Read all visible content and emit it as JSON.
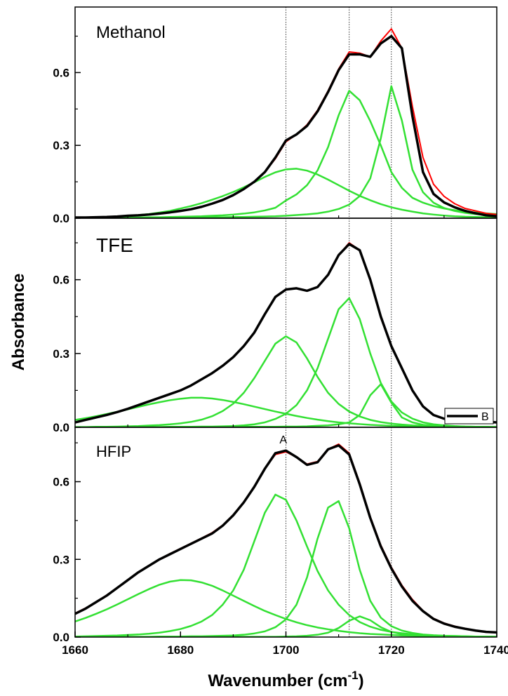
{
  "chart_data": [
    {
      "type": "line",
      "title": "Methanol",
      "x": [
        1660,
        1662,
        1664,
        1666,
        1668,
        1670,
        1672,
        1674,
        1676,
        1678,
        1680,
        1682,
        1684,
        1686,
        1688,
        1690,
        1692,
        1694,
        1696,
        1698,
        1700,
        1702,
        1704,
        1706,
        1708,
        1710,
        1712,
        1714,
        1716,
        1718,
        1720,
        1722,
        1724,
        1726,
        1728,
        1730,
        1732,
        1734,
        1736,
        1738,
        1740
      ],
      "series": [
        {
          "color": "#33e033",
          "values": [
            0.002,
            0.003,
            0.004,
            0.005,
            0.007,
            0.01,
            0.013,
            0.017,
            0.023,
            0.03,
            0.04,
            0.05,
            0.062,
            0.076,
            0.091,
            0.108,
            0.127,
            0.148,
            0.17,
            0.189,
            0.201,
            0.204,
            0.196,
            0.18,
            0.159,
            0.136,
            0.113,
            0.092,
            0.074,
            0.058,
            0.045,
            0.035,
            0.027,
            0.02,
            0.015,
            0.011,
            0.008,
            0.006,
            0.005,
            0.004,
            0.003
          ]
        },
        {
          "color": "#33e033",
          "values": [
            0.001,
            0.001,
            0.002,
            0.002,
            0.002,
            0.003,
            0.003,
            0.004,
            0.004,
            0.005,
            0.006,
            0.007,
            0.008,
            0.01,
            0.012,
            0.015,
            0.019,
            0.024,
            0.032,
            0.043,
            0.073,
            0.098,
            0.136,
            0.197,
            0.293,
            0.424,
            0.525,
            0.486,
            0.4,
            0.3,
            0.19,
            0.125,
            0.084,
            0.064,
            0.05,
            0.04,
            0.033,
            0.027,
            0.023,
            0.02,
            0.017
          ]
        },
        {
          "color": "#33e033",
          "values": [
            0.001,
            0.001,
            0.001,
            0.001,
            0.002,
            0.002,
            0.002,
            0.002,
            0.002,
            0.002,
            0.003,
            0.003,
            0.003,
            0.004,
            0.004,
            0.005,
            0.005,
            0.006,
            0.007,
            0.008,
            0.01,
            0.013,
            0.016,
            0.02,
            0.027,
            0.038,
            0.056,
            0.091,
            0.164,
            0.329,
            0.544,
            0.402,
            0.2,
            0.107,
            0.064,
            0.042,
            0.03,
            0.022,
            0.017,
            0.013,
            0.011
          ]
        },
        {
          "color": "#ff0000",
          "values": [
            0.003,
            0.004,
            0.005,
            0.006,
            0.008,
            0.01,
            0.012,
            0.015,
            0.019,
            0.024,
            0.03,
            0.037,
            0.047,
            0.06,
            0.075,
            0.095,
            0.12,
            0.15,
            0.19,
            0.245,
            0.315,
            0.345,
            0.385,
            0.445,
            0.525,
            0.615,
            0.685,
            0.68,
            0.665,
            0.73,
            0.78,
            0.7,
            0.46,
            0.25,
            0.14,
            0.09,
            0.06,
            0.04,
            0.03,
            0.02,
            0.015
          ]
        },
        {
          "color": "#000000",
          "values": [
            0.003,
            0.003,
            0.004,
            0.005,
            0.007,
            0.01,
            0.012,
            0.015,
            0.019,
            0.024,
            0.03,
            0.037,
            0.047,
            0.06,
            0.075,
            0.095,
            0.12,
            0.15,
            0.19,
            0.25,
            0.32,
            0.345,
            0.38,
            0.44,
            0.52,
            0.61,
            0.675,
            0.675,
            0.665,
            0.72,
            0.75,
            0.7,
            0.42,
            0.19,
            0.1,
            0.065,
            0.045,
            0.03,
            0.02,
            0.012,
            0.008
          ]
        }
      ],
      "xlim": [
        1660,
        1740
      ],
      "xminorticks": [
        1670,
        1690,
        1710,
        1730
      ],
      "ylim": [
        0,
        0.87
      ],
      "yticks": [
        {
          "value": 0,
          "label": "0.0"
        },
        0.3,
        0.6
      ],
      "yminorticks": [
        0.15,
        0.45,
        0.75
      ],
      "vlines": [
        1700,
        1712,
        1720
      ]
    },
    {
      "type": "line",
      "title": "TFE",
      "ylabel": "Absorbance",
      "legend": "lower right",
      "x": [
        1660,
        1662,
        1664,
        1666,
        1668,
        1670,
        1672,
        1674,
        1676,
        1678,
        1680,
        1682,
        1684,
        1686,
        1688,
        1690,
        1692,
        1694,
        1696,
        1698,
        1700,
        1702,
        1704,
        1706,
        1708,
        1710,
        1712,
        1714,
        1716,
        1718,
        1720,
        1722,
        1724,
        1726,
        1728,
        1730,
        1732,
        1734,
        1736,
        1738,
        1740
      ],
      "series": [
        {
          "color": "#33e033",
          "values": [
            0.03,
            0.037,
            0.045,
            0.054,
            0.063,
            0.073,
            0.083,
            0.093,
            0.102,
            0.11,
            0.116,
            0.12,
            0.12,
            0.117,
            0.111,
            0.103,
            0.094,
            0.084,
            0.074,
            0.064,
            0.055,
            0.046,
            0.038,
            0.031,
            0.025,
            0.02,
            0.016,
            0.013,
            0.01,
            0.008,
            0.006,
            0.005,
            0.004,
            0.003,
            0.002,
            0.002,
            0.001,
            0.001,
            0.001,
            0.001,
            0
          ]
        },
        {
          "color": "#33e033",
          "values": [
            0.001,
            0.001,
            0.002,
            0.002,
            0.003,
            0.004,
            0.005,
            0.007,
            0.009,
            0.012,
            0.016,
            0.022,
            0.031,
            0.045,
            0.066,
            0.096,
            0.14,
            0.2,
            0.27,
            0.34,
            0.37,
            0.345,
            0.28,
            0.205,
            0.14,
            0.095,
            0.064,
            0.044,
            0.03,
            0.021,
            0.015,
            0.011,
            0.008,
            0.006,
            0.004,
            0.003,
            0.002,
            0.002,
            0.001,
            0.001,
            0.001
          ]
        },
        {
          "color": "#33e033",
          "values": [
            0,
            0,
            0,
            0,
            0.001,
            0.001,
            0.001,
            0.001,
            0.001,
            0.002,
            0.002,
            0.002,
            0.003,
            0.003,
            0.004,
            0.005,
            0.008,
            0.012,
            0.02,
            0.034,
            0.055,
            0.09,
            0.15,
            0.24,
            0.36,
            0.48,
            0.525,
            0.44,
            0.3,
            0.18,
            0.105,
            0.06,
            0.035,
            0.02,
            0.012,
            0.008,
            0.005,
            0.003,
            0.002,
            0.001,
            0.001
          ]
        },
        {
          "color": "#33e033",
          "values": [
            0,
            0,
            0,
            0,
            0,
            0,
            0.001,
            0.001,
            0.001,
            0.001,
            0.001,
            0.001,
            0.001,
            0.001,
            0.001,
            0.001,
            0.002,
            0.002,
            0.002,
            0.002,
            0.003,
            0.003,
            0.004,
            0.006,
            0.008,
            0.012,
            0.02,
            0.05,
            0.13,
            0.175,
            0.1,
            0.04,
            0.02,
            0.01,
            0.007,
            0.005,
            0.004,
            0.003,
            0.002,
            0.002,
            0.001
          ]
        },
        {
          "color": "#ff0000",
          "values": [
            0.02,
            0.03,
            0.04,
            0.05,
            0.062,
            0.075,
            0.09,
            0.105,
            0.12,
            0.135,
            0.15,
            0.17,
            0.195,
            0.22,
            0.25,
            0.285,
            0.33,
            0.385,
            0.46,
            0.53,
            0.56,
            0.565,
            0.555,
            0.57,
            0.62,
            0.7,
            0.75,
            0.72,
            0.605,
            0.445,
            0.33,
            0.24,
            0.15,
            0.085,
            0.05,
            0.035,
            0.03,
            0.027,
            0.025,
            0.022,
            0.02
          ]
        },
        {
          "name": "B",
          "color": "#000000",
          "values": [
            0.02,
            0.03,
            0.04,
            0.05,
            0.062,
            0.075,
            0.09,
            0.105,
            0.12,
            0.135,
            0.15,
            0.17,
            0.195,
            0.22,
            0.25,
            0.285,
            0.33,
            0.385,
            0.46,
            0.53,
            0.56,
            0.565,
            0.555,
            0.57,
            0.62,
            0.7,
            0.745,
            0.72,
            0.6,
            0.45,
            0.33,
            0.24,
            0.15,
            0.085,
            0.05,
            0.035,
            0.03,
            0.027,
            0.025,
            0.022,
            0.02
          ]
        }
      ],
      "xlim": [
        1660,
        1740
      ],
      "xminorticks": [
        1670,
        1690,
        1710,
        1730
      ],
      "ylim": [
        0,
        0.85
      ],
      "yticks": [
        {
          "value": 0,
          "label": "0.0"
        },
        0.3,
        0.6
      ],
      "yminorticks": [
        0.15,
        0.45,
        0.75
      ],
      "vlines": [
        1700,
        1712,
        1720
      ]
    },
    {
      "type": "line",
      "title": "HFIP",
      "xlabel": {
        "text": "Wavenumber (cm",
        "sup": "-1",
        "tail": ")"
      },
      "annotations": [
        {
          "text": "A",
          "x": 1699.5
        }
      ],
      "x": [
        1660,
        1662,
        1664,
        1666,
        1668,
        1670,
        1672,
        1674,
        1676,
        1678,
        1680,
        1682,
        1684,
        1686,
        1688,
        1690,
        1692,
        1694,
        1696,
        1698,
        1700,
        1702,
        1704,
        1706,
        1708,
        1710,
        1712,
        1714,
        1716,
        1718,
        1720,
        1722,
        1724,
        1726,
        1728,
        1730,
        1732,
        1734,
        1736,
        1738,
        1740
      ],
      "series": [
        {
          "color": "#33e033",
          "values": [
            0.06,
            0.074,
            0.09,
            0.107,
            0.126,
            0.146,
            0.166,
            0.185,
            0.202,
            0.214,
            0.22,
            0.219,
            0.211,
            0.198,
            0.18,
            0.16,
            0.14,
            0.12,
            0.101,
            0.085,
            0.07,
            0.057,
            0.046,
            0.037,
            0.03,
            0.024,
            0.019,
            0.015,
            0.012,
            0.01,
            0.008,
            0.006,
            0.005,
            0.004,
            0.003,
            0.003,
            0.002,
            0.002,
            0.001,
            0.001,
            0.001
          ]
        },
        {
          "color": "#33e033",
          "values": [
            0.002,
            0.003,
            0.004,
            0.005,
            0.006,
            0.008,
            0.01,
            0.013,
            0.017,
            0.023,
            0.031,
            0.043,
            0.06,
            0.085,
            0.125,
            0.18,
            0.26,
            0.37,
            0.48,
            0.55,
            0.53,
            0.45,
            0.35,
            0.255,
            0.18,
            0.125,
            0.085,
            0.058,
            0.04,
            0.028,
            0.02,
            0.015,
            0.011,
            0.008,
            0.006,
            0.005,
            0.004,
            0.003,
            0.002,
            0.002,
            0.001
          ]
        },
        {
          "color": "#33e033",
          "values": [
            0,
            0,
            0,
            0.001,
            0.001,
            0.001,
            0.001,
            0.001,
            0.002,
            0.002,
            0.002,
            0.003,
            0.003,
            0.004,
            0.005,
            0.006,
            0.009,
            0.014,
            0.022,
            0.038,
            0.068,
            0.125,
            0.23,
            0.38,
            0.5,
            0.525,
            0.42,
            0.26,
            0.14,
            0.075,
            0.042,
            0.025,
            0.016,
            0.01,
            0.007,
            0.005,
            0.004,
            0.003,
            0.002,
            0.002,
            0.001
          ]
        },
        {
          "color": "#33e033",
          "values": [
            0,
            0,
            0,
            0,
            0,
            0,
            0,
            0,
            0,
            0,
            0,
            0,
            0,
            0,
            0,
            0.001,
            0.001,
            0.001,
            0.001,
            0.001,
            0.002,
            0.003,
            0.005,
            0.009,
            0.017,
            0.035,
            0.063,
            0.08,
            0.065,
            0.038,
            0.02,
            0.011,
            0.006,
            0.004,
            0.002,
            0.001,
            0.001,
            0.001,
            0,
            0,
            0
          ]
        },
        {
          "color": "#ff0000",
          "values": [
            0.092,
            0.112,
            0.136,
            0.162,
            0.19,
            0.22,
            0.25,
            0.276,
            0.3,
            0.322,
            0.342,
            0.362,
            0.382,
            0.403,
            0.432,
            0.472,
            0.522,
            0.582,
            0.65,
            0.705,
            0.715,
            0.695,
            0.668,
            0.678,
            0.725,
            0.745,
            0.71,
            0.595,
            0.465,
            0.355,
            0.27,
            0.2,
            0.145,
            0.102,
            0.072,
            0.054,
            0.042,
            0.033,
            0.026,
            0.021,
            0.018
          ]
        },
        {
          "color": "#000000",
          "values": [
            0.09,
            0.11,
            0.135,
            0.16,
            0.19,
            0.22,
            0.25,
            0.275,
            0.3,
            0.32,
            0.34,
            0.36,
            0.38,
            0.4,
            0.43,
            0.47,
            0.52,
            0.58,
            0.65,
            0.71,
            0.72,
            0.695,
            0.665,
            0.675,
            0.725,
            0.74,
            0.705,
            0.59,
            0.46,
            0.35,
            0.265,
            0.195,
            0.14,
            0.1,
            0.07,
            0.052,
            0.04,
            0.032,
            0.025,
            0.02,
            0.018
          ]
        }
      ],
      "xlim": [
        1660,
        1740
      ],
      "xticks": [
        1660,
        1680,
        1700,
        1720,
        1740
      ],
      "xminorticks": [
        1670,
        1690,
        1710,
        1730
      ],
      "ylim": [
        0,
        0.81
      ],
      "yticks": [
        {
          "value": 0,
          "label": "0.0"
        },
        0.3,
        0.6
      ],
      "yminorticks": [
        0.15,
        0.45,
        0.75
      ],
      "vlines": [
        1700,
        1712,
        1720
      ]
    }
  ]
}
